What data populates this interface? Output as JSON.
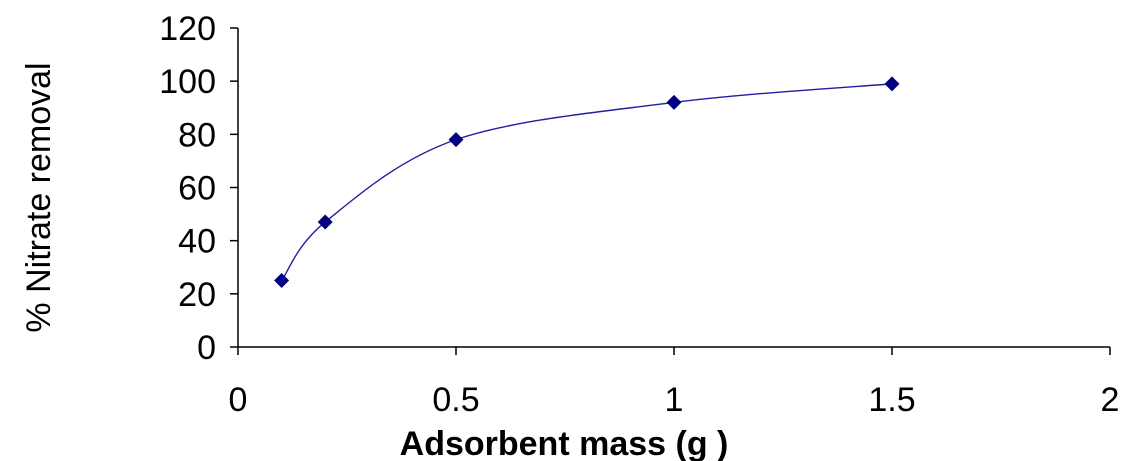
{
  "chart_data": {
    "type": "scatter",
    "title": "",
    "xlabel": "Adsorbent mass (g )",
    "ylabel": "% Nitrate removal",
    "xlim": [
      0,
      2
    ],
    "ylim": [
      0,
      120
    ],
    "x_ticks": [
      0,
      0.5,
      1,
      1.5,
      2
    ],
    "x_tick_labels": [
      "0",
      "0.5",
      "1",
      "1.5",
      "2"
    ],
    "y_ticks": [
      0,
      20,
      40,
      60,
      80,
      100,
      120
    ],
    "y_tick_labels": [
      "0",
      "20",
      "40",
      "60",
      "80",
      "100",
      "120"
    ],
    "grid": false,
    "legend": "none",
    "smoothed_line": true,
    "series": [
      {
        "x": [
          0.1,
          0.2,
          0.5,
          1.0,
          1.5
        ],
        "y": [
          25,
          47,
          78,
          92,
          99
        ],
        "marker": "diamond",
        "color": "#000080"
      }
    ]
  }
}
